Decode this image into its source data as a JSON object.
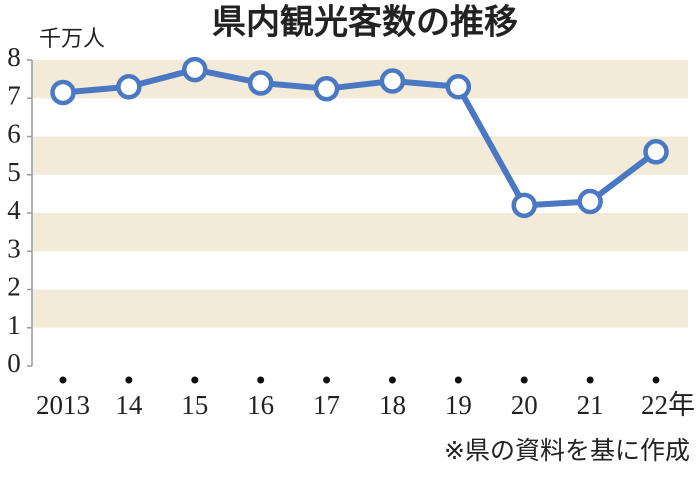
{
  "chart_data": {
    "type": "line",
    "title": "県内観光客数の推移",
    "y_unit_label": "千万人",
    "categories": [
      "2013",
      "14",
      "15",
      "16",
      "17",
      "18",
      "19",
      "20",
      "21",
      "22年"
    ],
    "series": [
      {
        "name": "県内観光客数",
        "color": "#4a78c2",
        "values": [
          7.15,
          7.3,
          7.75,
          7.4,
          7.25,
          7.45,
          7.3,
          4.2,
          4.3,
          5.6
        ]
      }
    ],
    "ylim": [
      0,
      8
    ],
    "yticks": [
      0,
      1,
      2,
      3,
      4,
      5,
      6,
      7,
      8
    ],
    "band_color": "#f3ebd8",
    "source": "※県の資料を基に作成"
  }
}
